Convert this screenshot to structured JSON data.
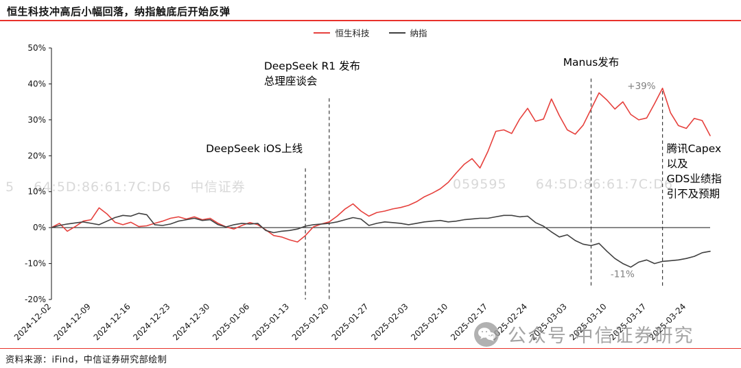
{
  "header": {
    "title": "恒生科技冲高后小幅回落，纳指触底后开始反弹"
  },
  "legend": [
    {
      "label": "恒生科技",
      "color": "#e6403c"
    },
    {
      "label": "纳指",
      "color": "#3f3f3f"
    }
  ],
  "watermarks": {
    "left": "5    64:5D:86:61:7C:D6    中信证券",
    "right": "059595      64:5D:86:61:7C:D6",
    "bottom": "公众号·中信证券研究"
  },
  "footer": {
    "source": "资料来源：iFind，中信证券研究部绘制"
  },
  "colors": {
    "accent_red": "#e8312a",
    "hst_line": "#e6403c",
    "nasdaq_line": "#3f3f3f",
    "gray_label": "#7f7f7f"
  },
  "chart_data": {
    "type": "line",
    "title": "恒生科技冲高后小幅回落，纳指触底后开始反弹",
    "xlabel": "",
    "ylabel": "",
    "ylim": [
      -20,
      50
    ],
    "yticks": [
      50,
      40,
      30,
      20,
      10,
      0,
      -10,
      -20
    ],
    "grid": false,
    "legend_position": "top-center",
    "n_points": 84,
    "x_tick_labels": [
      "2024-12-02",
      "2024-12-09",
      "2024-12-16",
      "2024-12-23",
      "2024-12-30",
      "2025-01-06",
      "2025-01-13",
      "2025-01-20",
      "2025-01-27",
      "2025-02-03",
      "2025-02-10",
      "2025-02-17",
      "2025-02-24",
      "2025-03-03",
      "2025-03-10",
      "2025-03-17",
      "2025-03-24"
    ],
    "x_tick_indices": [
      0,
      5,
      10,
      15,
      20,
      25,
      30,
      35,
      40,
      45,
      50,
      55,
      60,
      65,
      70,
      75,
      80
    ],
    "series": [
      {
        "name": "恒生科技",
        "color": "#e6403c",
        "values": [
          0,
          1.2,
          -1,
          0.3,
          1.8,
          2.2,
          5.5,
          3.8,
          1.5,
          0.8,
          1.5,
          0.3,
          0.5,
          1.2,
          1.8,
          2.6,
          3,
          2.4,
          3,
          2.2,
          2.6,
          1.2,
          0.2,
          -0.4,
          0.6,
          1.4,
          0.8,
          -0.6,
          -2.2,
          -2.6,
          -3.4,
          -4,
          -2.2,
          0.2,
          1,
          1.6,
          3.2,
          5.2,
          6.6,
          4.6,
          3.2,
          4.2,
          4.6,
          5.2,
          5.6,
          6.2,
          7.2,
          8.6,
          9.6,
          10.8,
          12.6,
          15.2,
          17.6,
          19.2,
          16.6,
          21.2,
          26.8,
          27.2,
          26.2,
          30.2,
          33.2,
          29.6,
          30.2,
          35.8,
          31.2,
          27.2,
          26,
          28.5,
          33,
          37.5,
          35.5,
          33,
          35,
          31.5,
          30,
          30.5,
          34.5,
          38.8,
          32,
          28.4,
          27.6,
          30.4,
          29.8,
          25.6
        ]
      },
      {
        "name": "纳指",
        "color": "#3f3f3f",
        "values": [
          0,
          0.6,
          1,
          1.3,
          1.6,
          1.2,
          0.8,
          1.8,
          2.8,
          3.4,
          3.2,
          4,
          3.6,
          0.8,
          0.6,
          1,
          1.8,
          2.2,
          2.6,
          2,
          2.2,
          0.8,
          0.2,
          0.8,
          1.2,
          1,
          1.2,
          -0.8,
          -1.4,
          -1,
          -0.8,
          -0.4,
          0.4,
          0.8,
          1,
          1.2,
          1.6,
          2.2,
          2.8,
          2.4,
          0.6,
          1.2,
          1.6,
          1.4,
          1.2,
          0.8,
          1.2,
          1.6,
          1.8,
          2,
          1.6,
          1.8,
          2.2,
          2.4,
          2.6,
          2.6,
          3,
          3.4,
          3.4,
          3,
          3.2,
          1.4,
          0.4,
          -1.2,
          -2.6,
          -2,
          -3.6,
          -4.6,
          -5,
          -4.4,
          -6.6,
          -8.6,
          -10,
          -11,
          -9.6,
          -9,
          -10,
          -9.4,
          -9.2,
          -9,
          -8.6,
          -8,
          -7,
          -6.6
        ]
      }
    ],
    "annotations": [
      {
        "id": "deepseek-ios",
        "lines": [
          "DeepSeek iOS上线"
        ],
        "x_index": 32,
        "anchor": "end",
        "dx": -4,
        "value": 21,
        "line_top_value": 16.5,
        "line_bottom_value": -20
      },
      {
        "id": "deepseek-r1",
        "lines": [
          "DeepSeek R1 发布",
          "总理座谈会"
        ],
        "x_index": 35,
        "anchor": "start",
        "dx": -95,
        "value": 44,
        "line_top_value": 36,
        "line_bottom_value": -20
      },
      {
        "id": "manus",
        "lines": [
          "Manus发布"
        ],
        "x_index": 68,
        "anchor": "middle",
        "dx": 0,
        "value": 45,
        "line_top_value": 41.5,
        "line_bottom_value": -16.5
      },
      {
        "id": "tencent-gds",
        "lines": [
          "腾讯Capex",
          "以及",
          "GDS业绩指",
          "引不及预期"
        ],
        "x_index": 77,
        "anchor": "start",
        "dx": 6,
        "value": 21,
        "line_top_value": 38,
        "line_bottom_value": -16.5
      }
    ],
    "point_labels": [
      {
        "text": "+39%",
        "x_index": 77,
        "dx": -10,
        "value": 38.6,
        "anchor": "end"
      },
      {
        "text": "-11%",
        "x_index": 73,
        "dx": -12,
        "value": -13.8,
        "anchor": "middle"
      }
    ]
  }
}
